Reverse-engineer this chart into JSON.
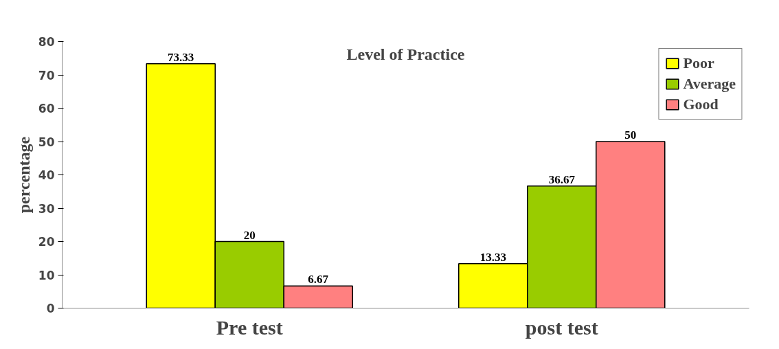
{
  "chart_data": {
    "type": "bar",
    "title": "Level of Practice",
    "ylabel": "percentage",
    "categories": [
      "Pre test",
      "post test"
    ],
    "series": [
      {
        "name": "Poor",
        "color": "#ffff00",
        "values": [
          73.33,
          13.33
        ]
      },
      {
        "name": "Average",
        "color": "#99cc00",
        "values": [
          20,
          36.67
        ]
      },
      {
        "name": "Good",
        "color": "#ff8080",
        "values": [
          6.67,
          50
        ]
      }
    ],
    "ylim": [
      0,
      80
    ],
    "yticks": [
      0,
      10,
      20,
      30,
      40,
      50,
      60,
      70,
      80
    ],
    "grid": false,
    "legend": "top right",
    "data_labels": true
  }
}
